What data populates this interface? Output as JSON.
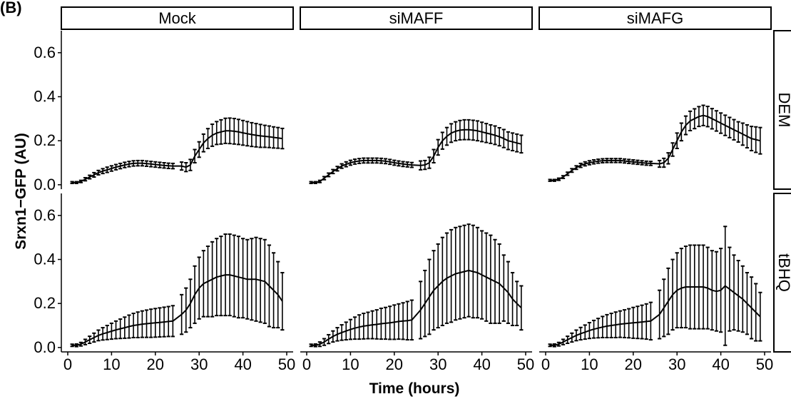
{
  "figure": {
    "panel_label": "(B)"
  },
  "chart_data": {
    "type": "line",
    "xlabel": "Time (hours)",
    "ylabel": "Srxn1−GFP (AU)",
    "xlim": [
      0,
      50
    ],
    "ylim": [
      0,
      0.7
    ],
    "x_ticks": [
      0,
      10,
      20,
      30,
      40,
      50
    ],
    "x_tick_labels": [
      "0",
      "10",
      "20",
      "30",
      "40",
      "50"
    ],
    "y_ticks": [
      0.0,
      0.2,
      0.4,
      0.6
    ],
    "y_tick_labels": [
      "0.0",
      "0.2",
      "0.4",
      "0.6"
    ],
    "grid": false,
    "column_facets": [
      "Mock",
      "siMAFF",
      "siMAFG"
    ],
    "row_facets": [
      "DEM",
      "tBHQ"
    ],
    "panels": [
      {
        "column": "Mock",
        "row": "DEM",
        "x": [
          1,
          2,
          3,
          4,
          5,
          6,
          7,
          8,
          9,
          10,
          11,
          12,
          13,
          14,
          15,
          16,
          17,
          18,
          19,
          20,
          21,
          22,
          23,
          24,
          26,
          27,
          28,
          29,
          30,
          31,
          32,
          33,
          34,
          35,
          36,
          37,
          38,
          39,
          40,
          41,
          42,
          43,
          44,
          45,
          46,
          47,
          48,
          49
        ],
        "y": [
          0.01,
          0.01,
          0.015,
          0.025,
          0.035,
          0.045,
          0.055,
          0.062,
          0.068,
          0.074,
          0.08,
          0.085,
          0.09,
          0.094,
          0.097,
          0.098,
          0.098,
          0.096,
          0.094,
          0.092,
          0.09,
          0.088,
          0.086,
          0.085,
          0.085,
          0.08,
          0.09,
          0.13,
          0.16,
          0.19,
          0.21,
          0.225,
          0.235,
          0.24,
          0.245,
          0.245,
          0.243,
          0.24,
          0.236,
          0.232,
          0.228,
          0.225,
          0.222,
          0.22,
          0.218,
          0.215,
          0.213,
          0.21
        ],
        "err": [
          0.004,
          0.004,
          0.005,
          0.007,
          0.008,
          0.01,
          0.01,
          0.011,
          0.012,
          0.012,
          0.012,
          0.012,
          0.012,
          0.012,
          0.012,
          0.012,
          0.012,
          0.012,
          0.012,
          0.012,
          0.012,
          0.012,
          0.012,
          0.012,
          0.018,
          0.02,
          0.025,
          0.03,
          0.035,
          0.04,
          0.045,
          0.05,
          0.052,
          0.055,
          0.057,
          0.058,
          0.058,
          0.057,
          0.056,
          0.055,
          0.054,
          0.053,
          0.052,
          0.05,
          0.049,
          0.048,
          0.047,
          0.046
        ]
      },
      {
        "column": "siMAFF",
        "row": "DEM",
        "x": [
          1,
          2,
          3,
          4,
          5,
          6,
          7,
          8,
          9,
          10,
          11,
          12,
          13,
          14,
          15,
          16,
          17,
          18,
          19,
          20,
          21,
          22,
          23,
          24,
          26,
          27,
          28,
          29,
          30,
          31,
          32,
          33,
          34,
          35,
          36,
          37,
          38,
          39,
          40,
          41,
          42,
          43,
          44,
          45,
          46,
          47,
          48,
          49
        ],
        "y": [
          0.01,
          0.01,
          0.015,
          0.03,
          0.045,
          0.06,
          0.073,
          0.085,
          0.093,
          0.1,
          0.105,
          0.108,
          0.11,
          0.11,
          0.11,
          0.11,
          0.109,
          0.107,
          0.104,
          0.1,
          0.097,
          0.094,
          0.092,
          0.09,
          0.088,
          0.09,
          0.1,
          0.13,
          0.17,
          0.2,
          0.22,
          0.235,
          0.243,
          0.248,
          0.25,
          0.25,
          0.248,
          0.245,
          0.24,
          0.235,
          0.23,
          0.225,
          0.218,
          0.21,
          0.2,
          0.195,
          0.19,
          0.185
        ],
        "err": [
          0.004,
          0.004,
          0.005,
          0.007,
          0.008,
          0.009,
          0.01,
          0.01,
          0.011,
          0.011,
          0.011,
          0.011,
          0.011,
          0.011,
          0.011,
          0.011,
          0.011,
          0.011,
          0.011,
          0.011,
          0.011,
          0.011,
          0.011,
          0.011,
          0.02,
          0.02,
          0.025,
          0.03,
          0.035,
          0.038,
          0.04,
          0.042,
          0.043,
          0.044,
          0.045,
          0.045,
          0.045,
          0.045,
          0.044,
          0.043,
          0.042,
          0.042,
          0.041,
          0.041,
          0.04,
          0.04,
          0.04,
          0.04
        ]
      },
      {
        "column": "siMAFG",
        "row": "DEM",
        "x": [
          1,
          2,
          3,
          4,
          5,
          6,
          7,
          8,
          9,
          10,
          11,
          12,
          13,
          14,
          15,
          16,
          17,
          18,
          19,
          20,
          21,
          22,
          23,
          24,
          26,
          27,
          28,
          29,
          30,
          31,
          32,
          33,
          34,
          35,
          36,
          37,
          38,
          39,
          40,
          41,
          42,
          43,
          44,
          45,
          46,
          47,
          48,
          49
        ],
        "y": [
          0.02,
          0.02,
          0.025,
          0.035,
          0.05,
          0.065,
          0.078,
          0.088,
          0.095,
          0.1,
          0.104,
          0.107,
          0.109,
          0.11,
          0.11,
          0.11,
          0.11,
          0.108,
          0.106,
          0.104,
          0.102,
          0.1,
          0.098,
          0.097,
          0.095,
          0.1,
          0.12,
          0.16,
          0.2,
          0.24,
          0.27,
          0.29,
          0.3,
          0.31,
          0.315,
          0.31,
          0.3,
          0.29,
          0.28,
          0.27,
          0.26,
          0.25,
          0.24,
          0.23,
          0.22,
          0.21,
          0.205,
          0.2
        ],
        "err": [
          0.004,
          0.004,
          0.005,
          0.006,
          0.007,
          0.008,
          0.008,
          0.009,
          0.009,
          0.009,
          0.009,
          0.009,
          0.009,
          0.009,
          0.009,
          0.009,
          0.009,
          0.009,
          0.009,
          0.009,
          0.009,
          0.009,
          0.009,
          0.009,
          0.015,
          0.02,
          0.025,
          0.03,
          0.035,
          0.04,
          0.042,
          0.044,
          0.045,
          0.045,
          0.046,
          0.046,
          0.046,
          0.046,
          0.046,
          0.046,
          0.046,
          0.046,
          0.046,
          0.05,
          0.052,
          0.055,
          0.058,
          0.06
        ]
      },
      {
        "column": "Mock",
        "row": "tBHQ",
        "x": [
          1,
          2,
          3,
          4,
          5,
          6,
          7,
          8,
          9,
          10,
          11,
          12,
          13,
          14,
          15,
          16,
          17,
          18,
          19,
          20,
          21,
          22,
          23,
          24,
          26,
          27,
          28,
          29,
          30,
          31,
          32,
          33,
          34,
          35,
          36,
          37,
          38,
          39,
          40,
          41,
          42,
          43,
          44,
          45,
          46,
          47,
          48,
          49
        ],
        "y": [
          0.01,
          0.01,
          0.015,
          0.025,
          0.035,
          0.045,
          0.055,
          0.062,
          0.068,
          0.074,
          0.08,
          0.085,
          0.09,
          0.095,
          0.1,
          0.103,
          0.106,
          0.108,
          0.11,
          0.112,
          0.114,
          0.116,
          0.118,
          0.12,
          0.15,
          0.17,
          0.2,
          0.24,
          0.27,
          0.29,
          0.3,
          0.31,
          0.32,
          0.325,
          0.33,
          0.33,
          0.325,
          0.32,
          0.315,
          0.31,
          0.31,
          0.31,
          0.305,
          0.3,
          0.28,
          0.26,
          0.24,
          0.21
        ],
        "err": [
          0.005,
          0.006,
          0.008,
          0.012,
          0.016,
          0.02,
          0.024,
          0.028,
          0.032,
          0.036,
          0.04,
          0.044,
          0.048,
          0.052,
          0.055,
          0.058,
          0.06,
          0.062,
          0.064,
          0.065,
          0.066,
          0.067,
          0.068,
          0.07,
          0.09,
          0.1,
          0.11,
          0.13,
          0.14,
          0.15,
          0.16,
          0.17,
          0.175,
          0.18,
          0.185,
          0.185,
          0.185,
          0.185,
          0.18,
          0.18,
          0.185,
          0.19,
          0.19,
          0.19,
          0.185,
          0.17,
          0.15,
          0.13
        ]
      },
      {
        "column": "siMAFF",
        "row": "tBHQ",
        "x": [
          1,
          2,
          3,
          4,
          5,
          6,
          7,
          8,
          9,
          10,
          11,
          12,
          13,
          14,
          15,
          16,
          17,
          18,
          19,
          20,
          21,
          22,
          23,
          24,
          26,
          27,
          28,
          29,
          30,
          31,
          32,
          33,
          34,
          35,
          36,
          37,
          38,
          39,
          40,
          41,
          42,
          43,
          44,
          45,
          46,
          47,
          48,
          49
        ],
        "y": [
          0.01,
          0.01,
          0.015,
          0.025,
          0.038,
          0.05,
          0.06,
          0.068,
          0.075,
          0.082,
          0.088,
          0.093,
          0.097,
          0.1,
          0.103,
          0.105,
          0.108,
          0.11,
          0.112,
          0.115,
          0.118,
          0.12,
          0.122,
          0.125,
          0.17,
          0.2,
          0.23,
          0.26,
          0.28,
          0.3,
          0.315,
          0.325,
          0.335,
          0.34,
          0.345,
          0.35,
          0.345,
          0.34,
          0.33,
          0.32,
          0.31,
          0.3,
          0.29,
          0.27,
          0.25,
          0.22,
          0.2,
          0.18
        ],
        "err": [
          0.005,
          0.006,
          0.01,
          0.015,
          0.02,
          0.025,
          0.03,
          0.035,
          0.04,
          0.045,
          0.05,
          0.055,
          0.058,
          0.06,
          0.063,
          0.066,
          0.07,
          0.072,
          0.075,
          0.078,
          0.08,
          0.083,
          0.087,
          0.09,
          0.13,
          0.15,
          0.17,
          0.18,
          0.19,
          0.2,
          0.205,
          0.21,
          0.21,
          0.21,
          0.21,
          0.21,
          0.21,
          0.205,
          0.2,
          0.2,
          0.2,
          0.19,
          0.18,
          0.15,
          0.14,
          0.12,
          0.1,
          0.1
        ]
      },
      {
        "column": "siMAFG",
        "row": "tBHQ",
        "x": [
          1,
          2,
          3,
          4,
          5,
          6,
          7,
          8,
          9,
          10,
          11,
          12,
          13,
          14,
          15,
          16,
          17,
          18,
          19,
          20,
          21,
          22,
          23,
          24,
          26,
          27,
          28,
          29,
          30,
          31,
          32,
          33,
          34,
          35,
          36,
          37,
          38,
          39,
          40,
          41,
          42,
          43,
          44,
          45,
          46,
          47,
          48,
          49
        ],
        "y": [
          0.01,
          0.01,
          0.015,
          0.025,
          0.035,
          0.045,
          0.055,
          0.063,
          0.07,
          0.077,
          0.083,
          0.088,
          0.093,
          0.097,
          0.1,
          0.103,
          0.106,
          0.108,
          0.11,
          0.112,
          0.114,
          0.116,
          0.118,
          0.12,
          0.15,
          0.18,
          0.21,
          0.24,
          0.26,
          0.27,
          0.275,
          0.275,
          0.275,
          0.275,
          0.275,
          0.27,
          0.26,
          0.255,
          0.26,
          0.28,
          0.265,
          0.25,
          0.235,
          0.22,
          0.2,
          0.18,
          0.16,
          0.14
        ],
        "err": [
          0.005,
          0.006,
          0.008,
          0.012,
          0.016,
          0.02,
          0.024,
          0.028,
          0.032,
          0.036,
          0.04,
          0.044,
          0.048,
          0.052,
          0.055,
          0.058,
          0.06,
          0.063,
          0.066,
          0.07,
          0.073,
          0.076,
          0.08,
          0.085,
          0.11,
          0.13,
          0.15,
          0.16,
          0.17,
          0.18,
          0.185,
          0.19,
          0.19,
          0.19,
          0.19,
          0.185,
          0.18,
          0.18,
          0.19,
          0.27,
          0.19,
          0.17,
          0.16,
          0.15,
          0.14,
          0.14,
          0.13,
          0.11
        ]
      }
    ]
  }
}
